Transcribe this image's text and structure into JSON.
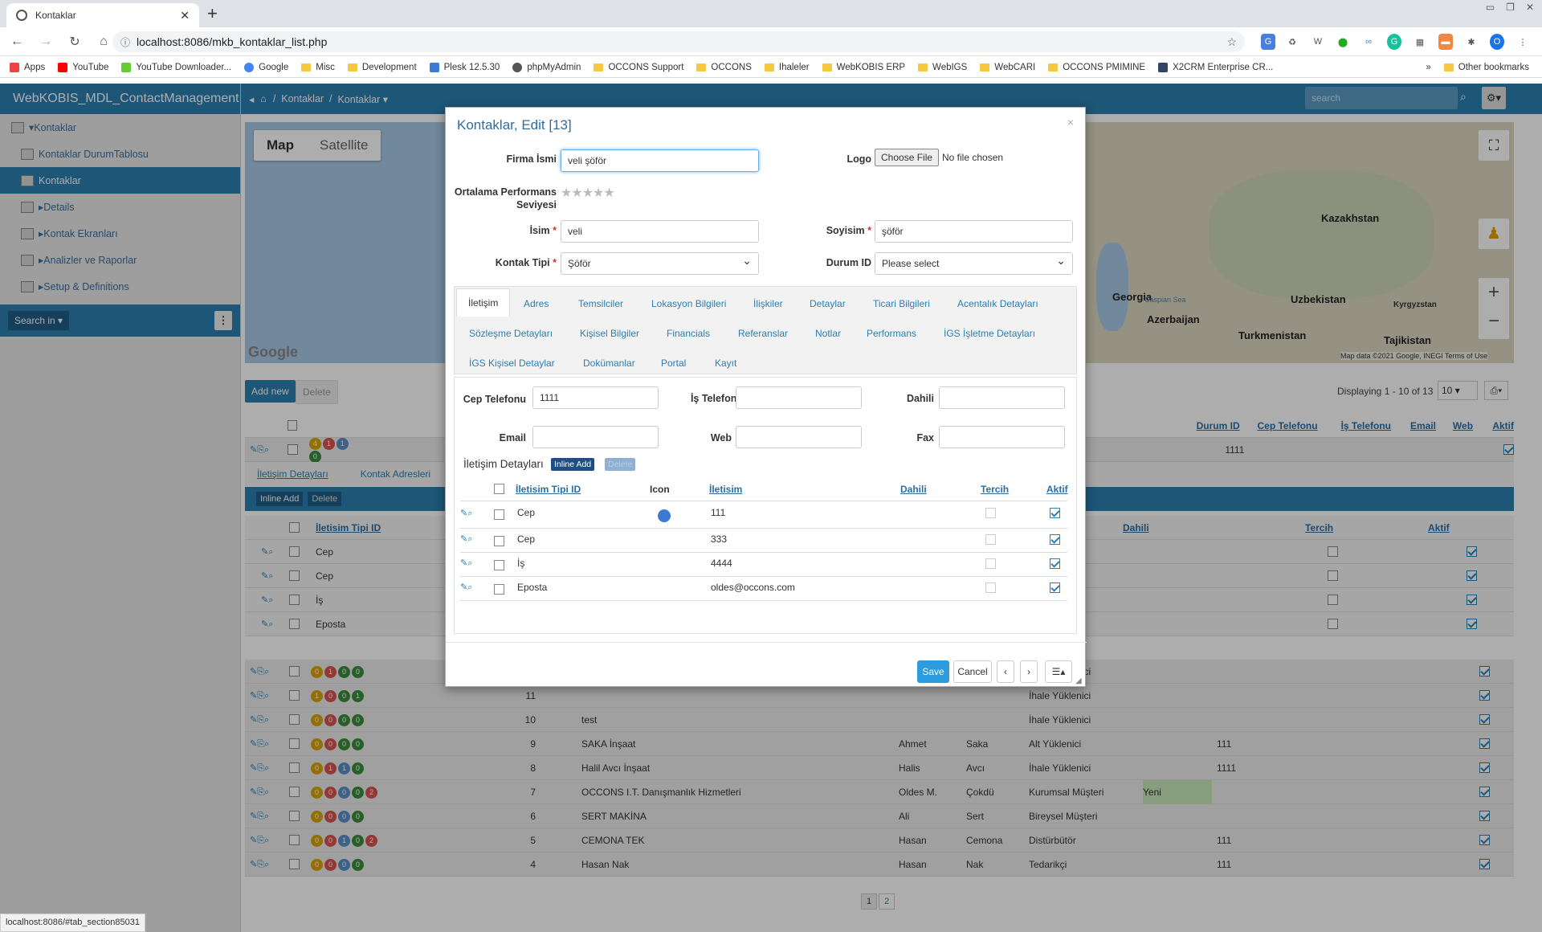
{
  "browser": {
    "tab_title": "Kontaklar",
    "url": "localhost:8086/mkb_kontaklar_list.php",
    "bookmarks": [
      "Apps",
      "YouTube",
      "YouTube Downloader...",
      "Google",
      "Misc",
      "Development",
      "Plesk 12.5.30",
      "phpMyAdmin",
      "OCCONS Support",
      "OCCONS",
      "Ihaleler",
      "WebKOBIS ERP",
      "WebIGS",
      "WebCARI",
      "OCCONS PMIMINE",
      "X2CRM Enterprise CR..."
    ],
    "other_bookmarks": "Other bookmarks",
    "status_url": "localhost:8086/#tab_section85031"
  },
  "app": {
    "title": "WebKOBIS_MDL_ContactManagement",
    "breadcrumb": [
      "Kontaklar",
      "Kontaklar"
    ],
    "search_placeholder": "search"
  },
  "sidebar": {
    "items": [
      {
        "label": "Kontaklar"
      },
      {
        "label": "Kontaklar DurumTablosu"
      },
      {
        "label": "Kontaklar"
      },
      {
        "label": "Details"
      },
      {
        "label": "Kontak Ekranları"
      },
      {
        "label": "Analizler ve Raporlar"
      },
      {
        "label": "Setup & Definitions"
      }
    ],
    "search_btn": "Search in"
  },
  "map": {
    "map_btn": "Map",
    "sat_btn": "Satellite",
    "labels": [
      "Kazakhstan",
      "Georgia",
      "Azerbaijan",
      "Uzbekistan",
      "Kyrgyzstan",
      "Turkmenistan",
      "Tajikistan",
      "Caspian Sea"
    ],
    "attribution": "Map data ©2021 Google, INEGI   Terms of Use",
    "logo": "Google"
  },
  "grid": {
    "add_new": "Add new",
    "delete": "Delete",
    "displaying": "Displaying 1 - 10 of 13",
    "page_size": "10",
    "headers": [
      "Durum ID",
      "Cep Telefonu",
      "İş Telefonu",
      "Email",
      "Web",
      "Aktif"
    ],
    "sub_tabs": [
      "İletişim Detayları",
      "Kontak Adresleri"
    ],
    "sub_inline_add": "Inline Add",
    "sub_delete": "Delete",
    "sub_headers": [
      "İletisim Tipi ID",
      "Dahili",
      "Tercih",
      "Aktif"
    ],
    "sub_rows": [
      "Cep",
      "Cep",
      "İş",
      "Eposta"
    ],
    "rows": [
      {
        "id": "",
        "name": "",
        "first": "",
        "last": "",
        "type": "",
        "durum": "",
        "cep": "1111"
      },
      {
        "id": "",
        "name": "",
        "first": "",
        "last": "",
        "type": "İhale Yüklenici",
        "durum": "",
        "cep": ""
      },
      {
        "id": "11",
        "name": "",
        "first": "",
        "last": "",
        "type": "İhale Yüklenici",
        "durum": "",
        "cep": ""
      },
      {
        "id": "10",
        "name": "test",
        "first": "",
        "last": "",
        "type": "İhale Yüklenici",
        "durum": "",
        "cep": ""
      },
      {
        "id": "9",
        "name": "SAKA İnşaat",
        "first": "Ahmet",
        "last": "Saka",
        "type": "Alt Yüklenici",
        "durum": "",
        "cep": "111"
      },
      {
        "id": "8",
        "name": "Halil Avcı İnşaat",
        "first": "Halis",
        "last": "Avcı",
        "type": "İhale Yüklenici",
        "durum": "",
        "cep": "1111"
      },
      {
        "id": "7",
        "name": "OCCONS I.T. Danışmanlık Hizmetleri",
        "first": "Oldes M.",
        "last": "Çokdü",
        "type": "Kurumsal Müşteri",
        "durum": "Yeni",
        "cep": ""
      },
      {
        "id": "6",
        "name": "SERT MAKİNA",
        "first": "Ali",
        "last": "Sert",
        "type": "Bireysel Müşteri",
        "durum": "",
        "cep": ""
      },
      {
        "id": "5",
        "name": "CEMONA TEK",
        "first": "Hasan",
        "last": "Cemona",
        "type": "Distürbütör",
        "durum": "",
        "cep": "111"
      },
      {
        "id": "4",
        "name": "Hasan Nak",
        "first": "Hasan",
        "last": "Nak",
        "type": "Tedarikçi",
        "durum": "",
        "cep": "111"
      }
    ],
    "pages": [
      "1",
      "2"
    ]
  },
  "modal": {
    "title": "Kontaklar, Edit [13]",
    "firma_label": "Firma İsmi",
    "firma_value": "veli  şöför",
    "logo_label": "Logo",
    "choose_file": "Choose File",
    "no_file": "No file chosen",
    "perf_label": "Ortalama Performans Seviyesi",
    "isim_label": "İsim",
    "isim_value": "veli",
    "soyisim_label": "Soyisim",
    "soyisim_value": "şöför",
    "kontak_tipi_label": "Kontak Tipi",
    "kontak_tipi_value": "Şöför",
    "durum_label": "Durum ID",
    "durum_value": "Please select",
    "tabs": [
      "İletişim",
      "Adres",
      "Temsilciler",
      "Lokasyon Bilgileri",
      "İlişkiler",
      "Detaylar",
      "Ticari Bilgileri",
      "Acentalık Detayları",
      "Sözleşme Detayları",
      "Kişisel Bilgiler",
      "Financials",
      "Referanslar",
      "Notlar",
      "Performans",
      "İGS İşletme Detayları",
      "İGS Kişisel Detaylar",
      "Dokümanlar",
      "Portal",
      "Kayıt"
    ],
    "cep_label": "Cep Telefonu",
    "cep_value": "1111",
    "is_tel_label": "İş Telefonu",
    "dahili_label": "Dahili",
    "email_label": "Email",
    "web_label": "Web",
    "fax_label": "Fax",
    "iletisim_title": "İletişim Detayları",
    "inline_add": "Inline Add",
    "delete": "Delete",
    "table_headers": [
      "İletisim Tipi ID",
      "Icon",
      "İletisim",
      "Dahili",
      "Tercih",
      "Aktif"
    ],
    "table_rows": [
      {
        "type": "Cep",
        "value": "111"
      },
      {
        "type": "Cep",
        "value": "333"
      },
      {
        "type": "İş",
        "value": "4444"
      },
      {
        "type": "Eposta",
        "value": "oldes@occons.com"
      }
    ],
    "save": "Save",
    "cancel": "Cancel"
  }
}
